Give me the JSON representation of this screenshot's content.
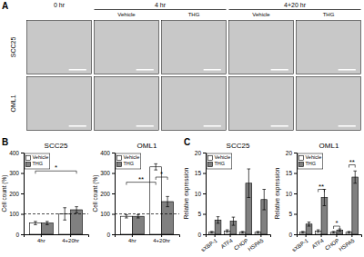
{
  "chart_data": [
    {
      "type": "image_grid",
      "panel_label": "A",
      "column_groups": [
        {
          "label": "0 hr",
          "columns": [
            null
          ]
        },
        {
          "label": "4 hr",
          "columns": [
            "Vehicle",
            "THG"
          ]
        },
        {
          "label": "4+20 hr",
          "columns": [
            "Vehicle",
            "THG"
          ]
        }
      ],
      "rows": [
        "SCC25",
        "OML1"
      ]
    },
    {
      "type": "bar",
      "panel_label": "B",
      "title": "SCC25",
      "ylabel": "Cell count (%)",
      "categories": [
        "4hr",
        "4+20hr"
      ],
      "series": [
        {
          "name": "Vehicle",
          "color": "#ffffff",
          "values": [
            55,
            100
          ],
          "errors": [
            8,
            30
          ]
        },
        {
          "name": "THG",
          "color": "#808080",
          "values": [
            55,
            120
          ],
          "errors": [
            8,
            15
          ]
        }
      ],
      "ylim": [
        0,
        400
      ],
      "yticks": [
        0,
        100,
        200,
        300,
        400
      ],
      "hline": 100,
      "legend": "top-left",
      "annotations": [
        {
          "text": "*",
          "y": 310,
          "from": [
            0,
            0
          ],
          "to": [
            1,
            1
          ]
        }
      ]
    },
    {
      "type": "bar",
      "title": "OML1",
      "ylabel": "Cell count (%)",
      "categories": [
        "4hr",
        "4+20hr"
      ],
      "series": [
        {
          "name": "Vehicle",
          "color": "#ffffff",
          "values": [
            88,
            330
          ],
          "errors": [
            8,
            15
          ]
        },
        {
          "name": "THG",
          "color": "#808080",
          "values": [
            88,
            160
          ],
          "errors": [
            8,
            25
          ]
        }
      ],
      "ylim": [
        0,
        400
      ],
      "yticks": [
        0,
        100,
        200,
        300,
        400
      ],
      "hline": 100,
      "legend": "top-left",
      "annotations": [
        {
          "text": "**",
          "y": 255,
          "from": [
            0,
            0
          ],
          "to": [
            0,
            1
          ]
        },
        {
          "text": "*",
          "y": 280,
          "from": [
            0,
            1
          ],
          "to": [
            1,
            1
          ]
        }
      ]
    },
    {
      "type": "bar",
      "panel_label": "C",
      "title": "SCC25",
      "ylabel": "Relative expression",
      "categories": [
        "sXBP-1",
        "ATF4",
        "CHOP",
        "HSPA5"
      ],
      "series": [
        {
          "name": "Vehicle",
          "color": "#ffffff",
          "values": [
            0.5,
            0.8,
            0.5,
            0.5
          ],
          "errors": [
            0.2,
            0.3,
            0.2,
            0.2
          ]
        },
        {
          "name": "THG",
          "color": "#808080",
          "values": [
            3.5,
            3.2,
            12.5,
            8.5
          ],
          "errors": [
            0.8,
            1.0,
            3.5,
            2.5
          ]
        }
      ],
      "ylim": [
        0,
        20
      ],
      "yticks": [
        0,
        5,
        10,
        15,
        20
      ],
      "legend": "top-left"
    },
    {
      "type": "bar",
      "title": "OML1",
      "ylabel": "Relative expression",
      "categories": [
        "sXBP-1",
        "ATF4",
        "CHOP",
        "HSPA5"
      ],
      "series": [
        {
          "name": "Vehicle",
          "color": "#ffffff",
          "values": [
            0.5,
            0.8,
            0.5,
            0.5
          ],
          "errors": [
            0.2,
            0.3,
            0.2,
            0.2
          ]
        },
        {
          "name": "THG",
          "color": "#808080",
          "values": [
            2.5,
            9.0,
            1.0,
            14.0
          ],
          "errors": [
            0.5,
            2.0,
            0.3,
            1.5
          ]
        }
      ],
      "ylim": [
        0,
        20
      ],
      "yticks": [
        0,
        5,
        10,
        15,
        20
      ],
      "legend": "top-left",
      "annotations": [
        {
          "text": "**",
          "y": 11.0,
          "from": [
            0,
            1
          ],
          "to": [
            1,
            1
          ]
        },
        {
          "text": "*",
          "y": 2.0,
          "from": [
            0,
            2
          ],
          "to": [
            1,
            2
          ]
        },
        {
          "text": "**",
          "y": 17.0,
          "from": [
            0,
            3
          ],
          "to": [
            1,
            3
          ]
        }
      ]
    }
  ]
}
